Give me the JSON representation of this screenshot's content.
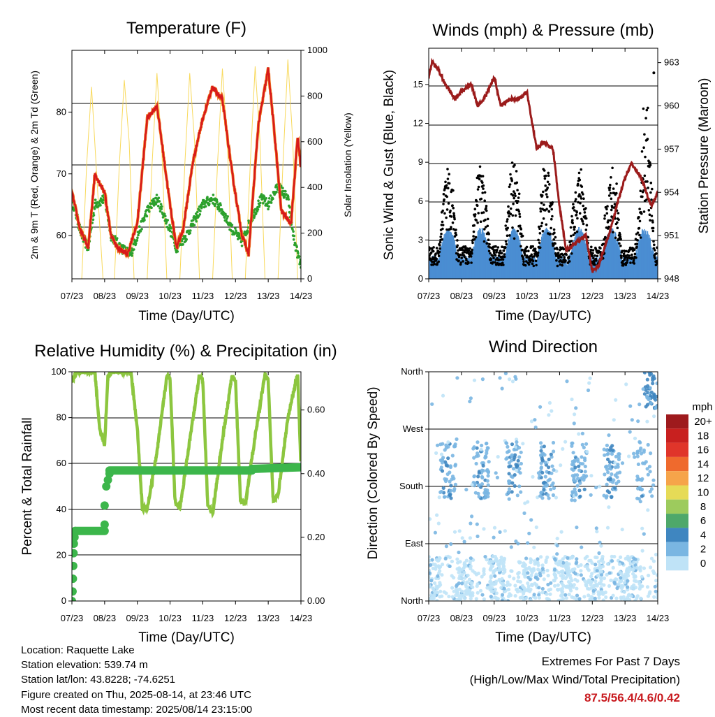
{
  "time_ticks": [
    "07/23",
    "08/23",
    "09/23",
    "10/23",
    "11/23",
    "12/23",
    "13/23",
    "14/23"
  ],
  "time_xlabel": "Time (Day/UTC)",
  "panels": {
    "temperature": {
      "title": "Temperature (F)",
      "ylabel_left": "2m & 9m T (Red, Orange) & 2m Td (Green)",
      "ylabel_right": "Solar Insolation (Yellow)",
      "yticks_left": [
        "60",
        "70",
        "80"
      ],
      "yticks_right": [
        "0",
        "200",
        "400",
        "600",
        "800",
        "1000"
      ]
    },
    "winds": {
      "title": "Winds (mph) & Pressure (mb)",
      "ylabel_left": "Sonic Wind & Gust (Blue, Black)",
      "ylabel_right": "Station Pressure (Maroon)",
      "yticks_left": [
        "0",
        "3",
        "6",
        "9",
        "12",
        "15"
      ],
      "yticks_right": [
        "948",
        "951",
        "954",
        "957",
        "960",
        "963"
      ]
    },
    "humidity": {
      "title": "Relative Humidity (%) & Precipitation (in)",
      "ylabel_left": "Percent & Total Rainfall",
      "yticks_left": [
        "0",
        "20",
        "40",
        "60",
        "80",
        "100"
      ],
      "yticks_right": [
        "0.00",
        "0.20",
        "0.40",
        "0.60"
      ]
    },
    "direction": {
      "title": "Wind Direction",
      "ylabel_left": "Direction (Colored By Speed)",
      "yticks_left": [
        "North",
        "East",
        "South",
        "West",
        "North"
      ],
      "legend_title": "mph",
      "legend_labels": [
        "20+",
        "18",
        "16",
        "14",
        "12",
        "10",
        "8",
        "6",
        "4",
        "2",
        "0"
      ],
      "legend_colors": [
        "#9e1a1d",
        "#c8201f",
        "#e0352a",
        "#ef6a2d",
        "#f6a44a",
        "#e6db57",
        "#9dcb5d",
        "#4ea86a",
        "#3f86c0",
        "#7ab6e2",
        "#bfe3f7"
      ]
    }
  },
  "info": {
    "location": "Location: Raquette Lake",
    "elevation": "Station elevation: 539.74 m",
    "latlon": "Station lat/lon: 43.8228; -74.6251",
    "created": "Figure created on Thu, 2025-08-14, at 23:46 UTC",
    "recent": "Most recent data timestamp: 2025/08/14 23:15:00"
  },
  "extremes": {
    "title": "Extremes For Past 7 Days",
    "subtitle": "(High/Low/Max Wind/Total Precipitation)",
    "values": "87.5/56.4/4.6/0.42"
  },
  "chart_data": [
    {
      "type": "line",
      "x_unit": "days since 07/23 00 UTC",
      "series": [
        {
          "color": "#d7191c",
          "x": [
            0,
            0.25,
            0.5,
            0.7,
            1.0,
            1.2,
            1.4,
            1.7,
            2.0,
            2.3,
            2.6,
            3.0,
            3.2,
            3.4,
            3.7,
            4.0,
            4.3,
            4.6,
            4.9,
            5.2,
            5.4,
            5.7,
            6.0,
            6.2,
            6.4,
            6.7,
            6.9,
            7.0
          ],
          "y": [
            67,
            61,
            58,
            70,
            67,
            60,
            58,
            57,
            62,
            79,
            81,
            65,
            58,
            61,
            72,
            79,
            84,
            82,
            70,
            60,
            57,
            78,
            87,
            76,
            64,
            62,
            76,
            71
          ]
        },
        {
          "color": "#2ca02c",
          "x": [
            0,
            0.3,
            0.5,
            0.7,
            1.0,
            1.2,
            1.5,
            1.8,
            2.0,
            2.3,
            2.6,
            3.0,
            3.2,
            3.5,
            3.8,
            4.0,
            4.3,
            4.6,
            4.9,
            5.2,
            5.5,
            5.8,
            6.0,
            6.3,
            6.6,
            6.8,
            7.0
          ],
          "y": [
            66,
            60,
            58,
            65,
            66,
            60,
            58,
            57,
            60,
            64,
            66,
            61,
            58,
            60,
            63,
            65,
            66,
            64,
            61,
            59,
            63,
            66,
            65,
            68,
            66,
            59,
            55
          ]
        },
        {
          "color": "#f7d54a",
          "x": [
            0.3,
            0.45,
            0.6,
            0.8,
            0.95,
            1.3,
            1.45,
            1.6,
            1.75,
            1.9,
            2.3,
            2.45,
            2.6,
            2.75,
            2.9,
            3.3,
            3.45,
            3.6,
            3.75,
            3.9,
            4.3,
            4.45,
            4.6,
            4.75,
            4.9,
            5.3,
            5.45,
            5.6,
            5.75,
            5.9,
            6.3,
            6.45,
            6.6,
            6.75,
            6.9
          ],
          "y": [
            0,
            500,
            840,
            350,
            0,
            0,
            500,
            870,
            600,
            0,
            0,
            500,
            900,
            550,
            0,
            0,
            500,
            900,
            600,
            0,
            0,
            500,
            920,
            600,
            0,
            0,
            500,
            930,
            600,
            0,
            0,
            500,
            960,
            600,
            0
          ]
        }
      ],
      "ylim_left": [
        53,
        90
      ],
      "ylim_right": [
        0,
        1000
      ]
    },
    {
      "type": "scatter",
      "series": [
        {
          "color": "#000000",
          "ymax_gust": 15.9,
          "typical_peak": 8.5
        },
        {
          "color": "#4a8ed3",
          "typical_range": [
            0,
            3
          ]
        },
        {
          "color": "#9b1b1b",
          "type": "line",
          "x": [
            0,
            0.1,
            0.3,
            0.5,
            0.8,
            1.0,
            1.3,
            1.5,
            1.7,
            2.0,
            2.2,
            2.5,
            2.8,
            3.0,
            3.3,
            3.5,
            3.8,
            4.0,
            4.2,
            4.5,
            4.8,
            5.0,
            5.2,
            5.5,
            5.8,
            6.0,
            6.2,
            6.5,
            6.8,
            7.0
          ],
          "y": [
            962,
            963,
            962.5,
            961.5,
            960.5,
            961,
            961.5,
            960,
            960.5,
            962,
            960,
            960.5,
            960.5,
            961,
            957,
            957.5,
            957,
            953,
            950,
            950.5,
            951,
            948.5,
            949,
            951,
            953.5,
            955,
            956,
            955,
            953,
            954
          ]
        }
      ],
      "ylim_left": [
        0,
        17.8
      ],
      "ylim_right": [
        948,
        964
      ]
    },
    {
      "type": "line",
      "series": [
        {
          "color": "#8cc63f",
          "name": "RH",
          "x": [
            0,
            0.15,
            0.7,
            0.85,
            1.0,
            1.1,
            1.2,
            1.4,
            1.6,
            1.8,
            2.0,
            2.15,
            2.3,
            2.6,
            2.9,
            3.0,
            3.15,
            3.3,
            3.6,
            3.9,
            4.0,
            4.15,
            4.3,
            4.6,
            4.9,
            5.0,
            5.15,
            5.3,
            5.6,
            5.9,
            6.0,
            6.15,
            6.3,
            6.6,
            6.9,
            7.0
          ],
          "y": [
            96,
            100,
            100,
            75,
            68,
            98,
            100,
            100,
            100,
            100,
            75,
            41,
            40,
            65,
            98,
            97,
            44,
            40,
            70,
            99,
            96,
            42,
            38,
            70,
            99,
            96,
            44,
            42,
            72,
            99,
            96,
            44,
            46,
            80,
            99,
            58
          ]
        },
        {
          "color": "#3cb64b",
          "name": "Precip",
          "x": [
            0,
            0.05,
            0.1,
            0.4,
            0.8,
            1.0,
            1.1,
            1.3,
            7.0
          ],
          "y": [
            0,
            0.15,
            0.22,
            0.22,
            0.22,
            0.35,
            0.4,
            0.41,
            0.42
          ]
        }
      ],
      "ylim_left": [
        0,
        100
      ],
      "ylim_right": [
        0,
        0.72
      ]
    },
    {
      "type": "scatter",
      "ylim": [
        0,
        360
      ],
      "yticks": [
        "North",
        "East",
        "South",
        "West",
        "North"
      ],
      "note": "points colored by speed"
    }
  ]
}
